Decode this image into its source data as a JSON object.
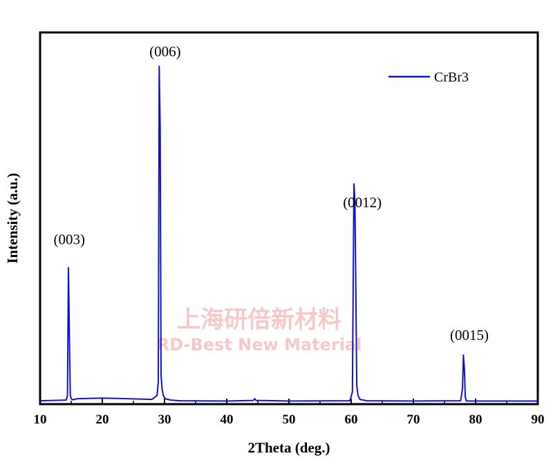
{
  "chart_data": {
    "type": "line",
    "title": "",
    "xlabel": "2Theta (deg.)",
    "ylabel": "Intensity (a.u.)",
    "xlim": [
      10,
      90
    ],
    "ylim": [
      0,
      1.05
    ],
    "xticks": [
      "10",
      "20",
      "30",
      "40",
      "50",
      "60",
      "70",
      "80",
      "90"
    ],
    "grid": false,
    "legend_position": "top-right",
    "series": [
      {
        "name": "CrBr3",
        "color": "#1010d0",
        "x": [
          10,
          14.2,
          14.4,
          14.55,
          14.7,
          14.85,
          15.0,
          15.2,
          16,
          20,
          24,
          28,
          28.8,
          29.0,
          29.15,
          29.3,
          29.45,
          29.6,
          29.8,
          30.1,
          31,
          32.5,
          40,
          44.3,
          44.5,
          44.7,
          50,
          59.8,
          60.2,
          60.45,
          60.6,
          60.75,
          60.9,
          61.1,
          61.4,
          62.5,
          70,
          77.6,
          77.9,
          78.05,
          78.2,
          78.35,
          78.5,
          78.8,
          80,
          90
        ],
        "y": [
          0.004,
          0.006,
          0.02,
          0.4,
          0.21,
          0.02,
          0.01,
          0.007,
          0.01,
          0.012,
          0.01,
          0.008,
          0.02,
          0.06,
          1.0,
          0.82,
          0.08,
          0.04,
          0.02,
          0.01,
          0.006,
          0.004,
          0.003,
          0.005,
          0.01,
          0.005,
          0.003,
          0.004,
          0.03,
          0.65,
          0.6,
          0.33,
          0.05,
          0.02,
          0.008,
          0.004,
          0.003,
          0.004,
          0.04,
          0.14,
          0.1,
          0.015,
          0.004,
          0.003,
          0.003,
          0.003
        ]
      }
    ],
    "annotations": [
      {
        "text": "(003)",
        "x": 14.7,
        "y": 0.47
      },
      {
        "text": "(006)",
        "x": 30.1,
        "y": 1.03
      },
      {
        "text": "(0012)",
        "x": 61.8,
        "y": 0.58
      },
      {
        "text": "(0015)",
        "x": 79.0,
        "y": 0.185
      }
    ]
  },
  "watermark": {
    "line1": "上海研倍新材料",
    "line2": "RD-Best New Material"
  }
}
